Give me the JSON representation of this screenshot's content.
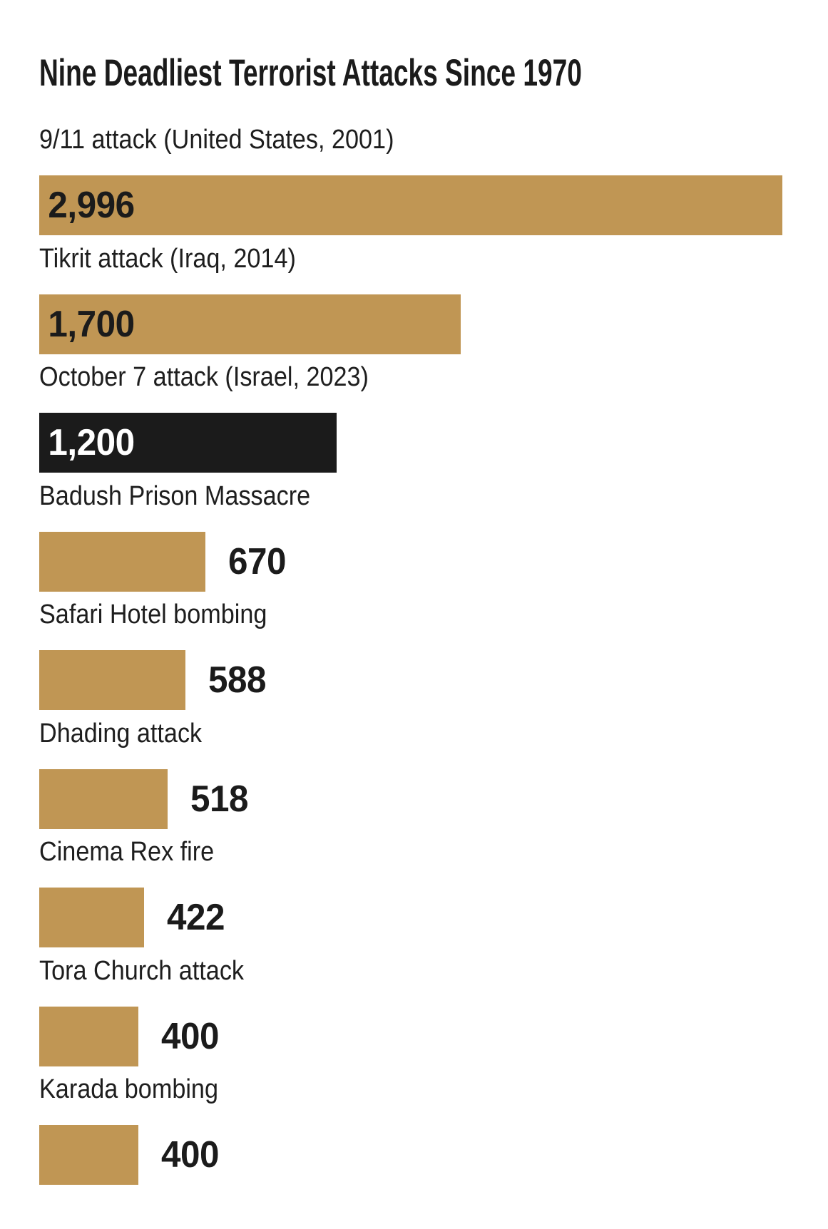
{
  "chart_data": {
    "type": "bar",
    "orientation": "horizontal",
    "title": "Nine Deadliest Terrorist Attacks Since 1970",
    "categories": [
      "9/11 attack (United States, 2001)",
      "Tikrit attack (Iraq, 2014)",
      "October 7 attack (Israel, 2023)",
      "Badush Prison Massacre",
      "Safari Hotel bombing",
      "Dhading attack",
      "Cinema Rex fire",
      "Tora Church attack",
      "Karada bombing"
    ],
    "values": [
      2996,
      1700,
      1200,
      670,
      588,
      518,
      422,
      400,
      400
    ],
    "value_labels": [
      "2,996",
      "1,700",
      "1,200",
      "670",
      "588",
      "518",
      "422",
      "400",
      "400"
    ],
    "xlim": [
      0,
      2996
    ],
    "highlight_index": 2,
    "bar_colors": [
      "#c09654",
      "#c09654",
      "#1b1b1b",
      "#c09654",
      "#c09654",
      "#c09654",
      "#c09654",
      "#c09654",
      "#c09654"
    ],
    "grid": false,
    "legend": false,
    "axes_shown": false,
    "colors": {
      "bar_gold": "#c09654",
      "bar_highlight": "#1b1b1b",
      "text_dark": "#1b1b1b",
      "label_text": "#1e1e1e",
      "value_on_dark": "#ffffff",
      "background": "#ffffff"
    }
  }
}
